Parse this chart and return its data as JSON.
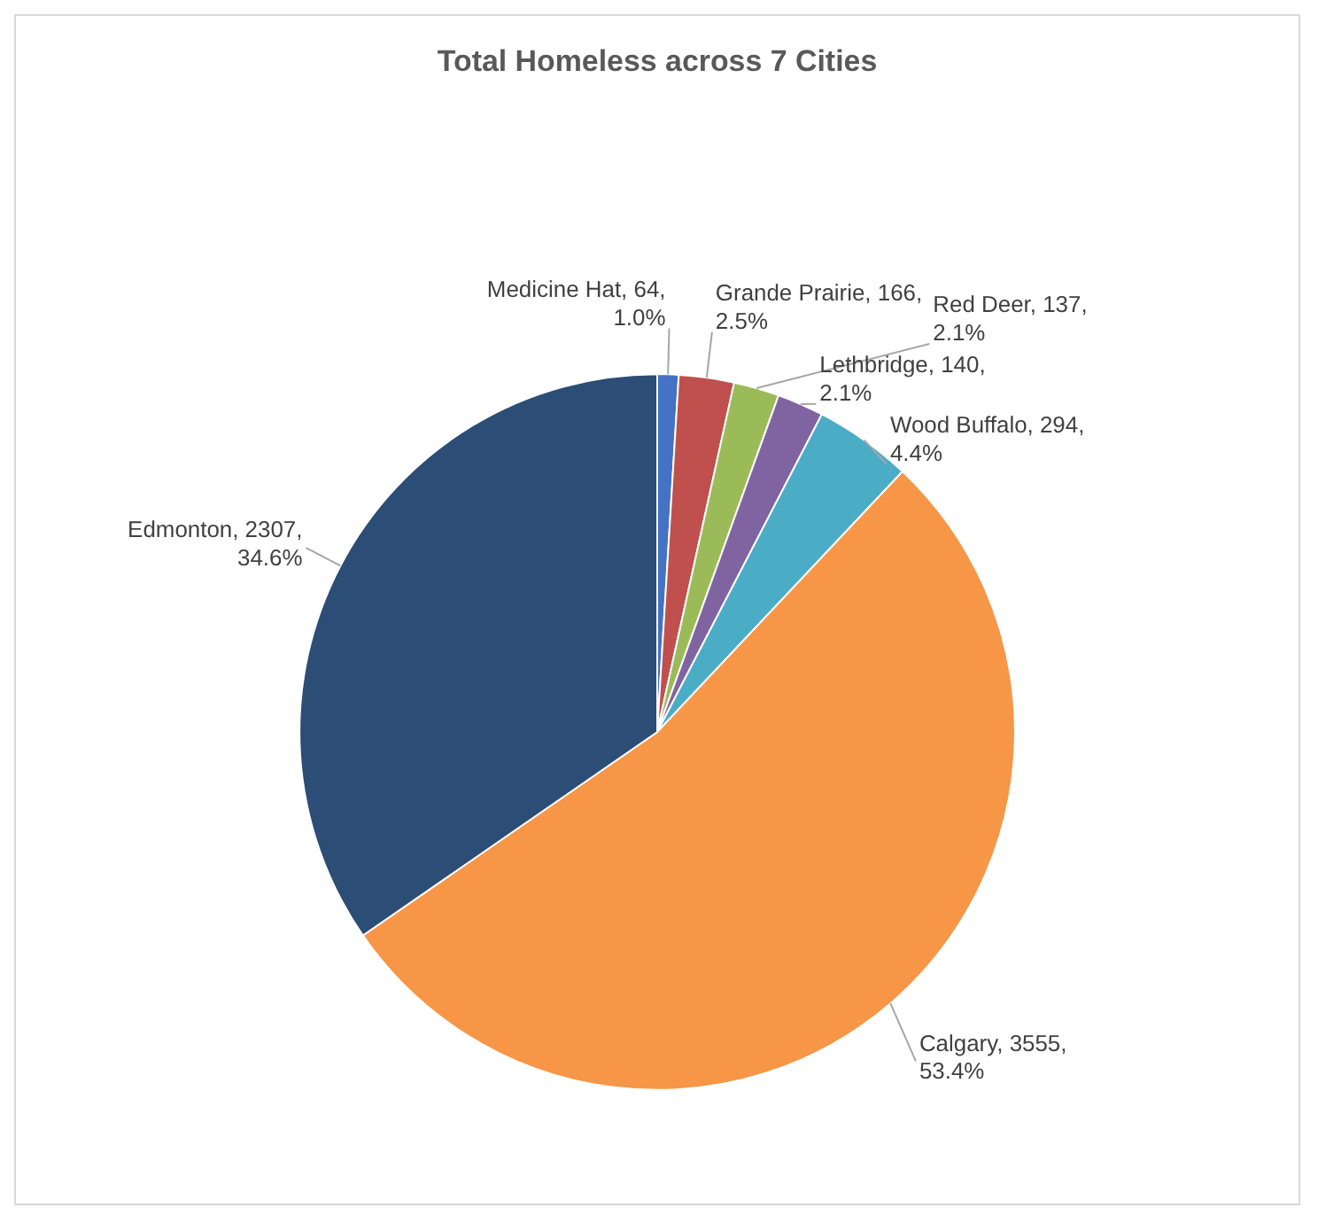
{
  "chart_data": {
    "type": "pie",
    "title": "Total Homeless across 7 Cities",
    "categories": [
      "Medicine Hat",
      "Grande Prairie",
      "Red Deer",
      "Lethbridge",
      "Wood Buffalo",
      "Calgary",
      "Edmonton"
    ],
    "values": [
      64,
      166,
      137,
      140,
      294,
      3555,
      2307
    ],
    "colors": [
      "#4472c4",
      "#c0504d",
      "#9bbb59",
      "#8064a2",
      "#4bacc6",
      "#f79646",
      "#2c4d75"
    ],
    "value_labels": [
      "64, 1.0%",
      "166, 2.5%",
      "137, 2.1%",
      "140, 2.1%",
      "294, 4.4%",
      "3555, 53.4%",
      "2307, 34.6%"
    ],
    "legend": false
  }
}
